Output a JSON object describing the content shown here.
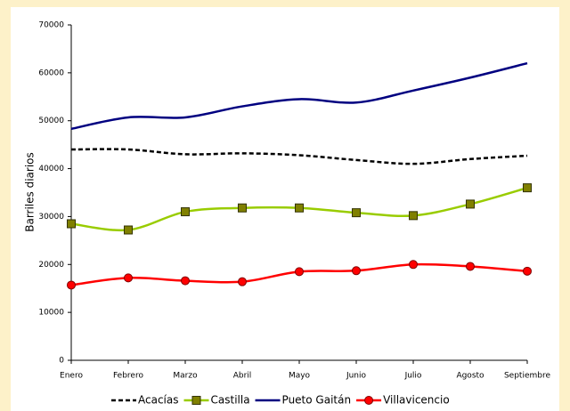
{
  "chart_data": {
    "type": "line",
    "y_label": "Barriles diarios",
    "categories": [
      "Enero",
      "Febrero",
      "Marzo",
      "Abril",
      "Mayo",
      "Junio",
      "Julio",
      "Agosto",
      "Septiembre"
    ],
    "series": [
      {
        "name": "Acacías",
        "color": "#000000",
        "dash": true,
        "marker": "none",
        "values": [
          44000,
          44000,
          43000,
          43200,
          42800,
          41800,
          41000,
          42000,
          42700
        ]
      },
      {
        "name": "Castilla",
        "color": "#99cc00",
        "dash": false,
        "marker": "square",
        "marker_color": "#808000",
        "values": [
          28500,
          27200,
          31000,
          31800,
          31800,
          30800,
          30200,
          32600,
          36000
        ]
      },
      {
        "name": "Pueto Gaitán",
        "color": "#000080",
        "dash": false,
        "marker": "none",
        "values": [
          48300,
          50700,
          50700,
          53000,
          54500,
          53800,
          56300,
          59000,
          62000
        ]
      },
      {
        "name": "Villavicencio",
        "color": "#ff0000",
        "dash": false,
        "marker": "circle",
        "marker_color": "#ff0000",
        "values": [
          15700,
          17200,
          16600,
          16400,
          18500,
          18700,
          20000,
          19600,
          18600
        ]
      }
    ],
    "ylim": [
      0,
      70000
    ],
    "yticks": [
      0,
      10000,
      20000,
      30000,
      40000,
      50000,
      60000,
      70000
    ],
    "legend": "bottom"
  }
}
